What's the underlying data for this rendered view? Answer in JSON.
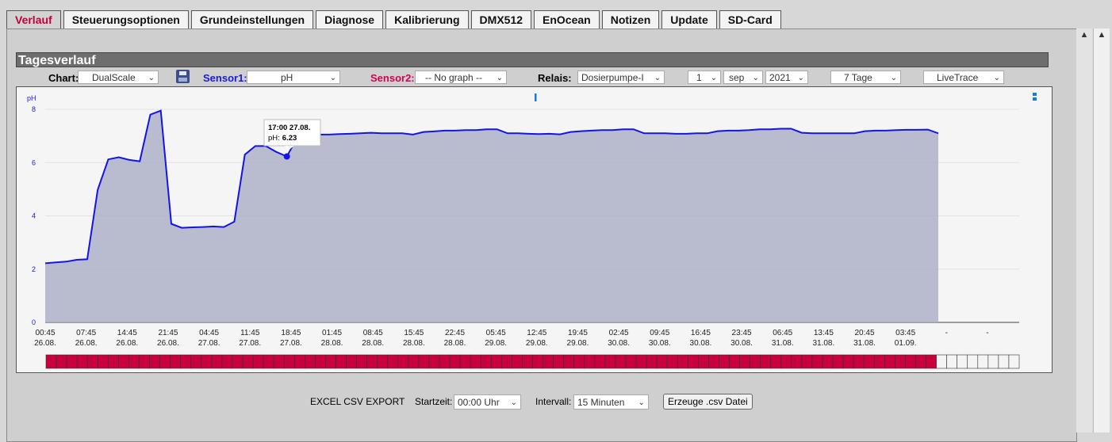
{
  "tabs": [
    "Verlauf",
    "Steuerungsoptionen",
    "Grundeinstellungen",
    "Diagnose",
    "Kalibrierung",
    "DMX512",
    "EnOcean",
    "Notizen",
    "Update",
    "SD-Card"
  ],
  "active_tab": "Verlauf",
  "section_title": "Tagesverlauf",
  "controls": {
    "chart_label": "Chart:",
    "chart_value": "DualScale",
    "sensor1_label": "Sensor1:",
    "sensor1_value": "pH",
    "sensor2_label": "Sensor2:",
    "sensor2_value": "-- No graph --",
    "relais_label": "Relais:",
    "relais_value": "Dosierpumpe-I",
    "day": "1",
    "month": "sep",
    "year": "2021",
    "range": "7 Tage",
    "mode": "LiveTrace"
  },
  "colors": {
    "accent": "#c0003a",
    "sensor1": "#1a1ad8",
    "sensor2": "#d40055",
    "line": "#1414e6",
    "area": "#aeb1c8",
    "status_bar": "#c8003c"
  },
  "tooltip": {
    "line1": "17:00 27.08.",
    "line2_label": "pH:",
    "line2_value": "6.23"
  },
  "chart_data": {
    "type": "area",
    "ylabel": "pH",
    "ylim": [
      0,
      8
    ],
    "yticks": [
      "0",
      "2",
      "4",
      "6",
      "8"
    ],
    "xtick_labels": [
      [
        "00:45",
        "26.08."
      ],
      [
        "07:45",
        "26.08."
      ],
      [
        "14:45",
        "26.08."
      ],
      [
        "21:45",
        "26.08."
      ],
      [
        "04:45",
        "27.08."
      ],
      [
        "11:45",
        "27.08."
      ],
      [
        "18:45",
        "27.08."
      ],
      [
        "01:45",
        "28.08."
      ],
      [
        "08:45",
        "28.08."
      ],
      [
        "15:45",
        "28.08."
      ],
      [
        "22:45",
        "28.08."
      ],
      [
        "05:45",
        "29.08."
      ],
      [
        "12:45",
        "29.08."
      ],
      [
        "19:45",
        "29.08."
      ],
      [
        "02:45",
        "30.08."
      ],
      [
        "09:45",
        "30.08."
      ],
      [
        "16:45",
        "30.08."
      ],
      [
        "23:45",
        "30.08."
      ],
      [
        "06:45",
        "31.08."
      ],
      [
        "13:45",
        "31.08."
      ],
      [
        "20:45",
        "31.08."
      ],
      [
        "03:45",
        "01.09."
      ],
      [
        "-",
        ""
      ],
      [
        "-",
        ""
      ]
    ],
    "series": [
      {
        "values": [
          2.22,
          2.25,
          2.28,
          2.35,
          2.37,
          4.98,
          6.12,
          6.2,
          6.1,
          6.05,
          7.8,
          7.95,
          3.7,
          3.55,
          3.57,
          3.58,
          3.6,
          3.58,
          3.78,
          6.3,
          6.62,
          6.62,
          6.4,
          6.23,
          6.95,
          7.05,
          7.05,
          7.05,
          7.07,
          7.08,
          7.1,
          7.12,
          7.1,
          7.1,
          7.1,
          7.05,
          7.15,
          7.17,
          7.2,
          7.2,
          7.22,
          7.22,
          7.25,
          7.25,
          7.1,
          7.1,
          7.08,
          7.07,
          7.08,
          7.06,
          7.15,
          7.18,
          7.2,
          7.22,
          7.22,
          7.25,
          7.25,
          7.1,
          7.1,
          7.1,
          7.08,
          7.08,
          7.1,
          7.1,
          7.18,
          7.2,
          7.2,
          7.22,
          7.25,
          7.25,
          7.27,
          7.27,
          7.12,
          7.1,
          7.1,
          7.1,
          7.1,
          7.1,
          7.18,
          7.2,
          7.2,
          7.22,
          7.23,
          7.23,
          7.24,
          7.1
        ]
      }
    ],
    "grid": true
  },
  "status_bar": {
    "filled": 86,
    "total": 94
  },
  "export": {
    "label": "EXCEL CSV EXPORT",
    "start_label": "Startzeit:",
    "start_value": "00:00 Uhr",
    "interval_label": "Intervall:",
    "interval_value": "15 Minuten",
    "button": "Erzeuge .csv Datei"
  }
}
